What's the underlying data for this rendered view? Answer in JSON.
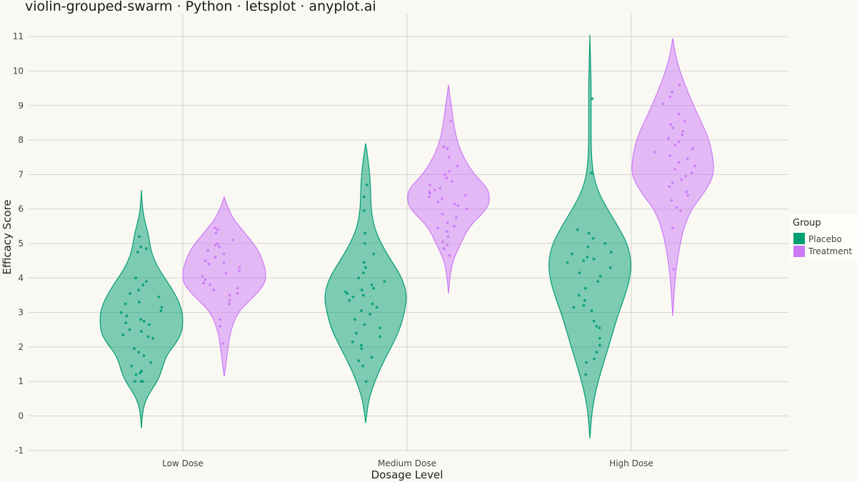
{
  "title": "violin-grouped-swarm · Python · letsplot · anyplot.ai",
  "colors": {
    "background": "#FAF8F2",
    "placebo": "#009E73",
    "treatment": "#CC79F7",
    "grid": "#D4D2CC"
  },
  "chart_data": {
    "type": "violin",
    "title": "violin-grouped-swarm · Python · letsplot · anyplot.ai",
    "xlabel": "Dosage Level",
    "ylabel": "Efficacy Score",
    "categories": [
      "Low Dose",
      "Medium Dose",
      "High Dose"
    ],
    "ylim": [
      -1.1,
      11.4
    ],
    "yticks": [
      "-1",
      "0",
      "1",
      "2",
      "3",
      "4",
      "5",
      "6",
      "7",
      "8",
      "9",
      "10",
      "11"
    ],
    "grid": true,
    "legend": {
      "title": "Group",
      "position": "right",
      "entries": [
        "Placebo",
        "Treatment"
      ]
    },
    "series": [
      {
        "name": "Placebo",
        "violins": [
          {
            "category": "Low Dose",
            "ymin": -0.35,
            "ymax": 6.55,
            "density": [
              [
                -0.35,
                0.0
              ],
              [
                0.0,
                0.02
              ],
              [
                0.3,
                0.06
              ],
              [
                0.6,
                0.16
              ],
              [
                0.9,
                0.33
              ],
              [
                1.2,
                0.46
              ],
              [
                1.5,
                0.53
              ],
              [
                1.8,
                0.63
              ],
              [
                2.1,
                0.83
              ],
              [
                2.4,
                0.97
              ],
              [
                2.7,
                1.0
              ],
              [
                3.0,
                0.99
              ],
              [
                3.3,
                0.91
              ],
              [
                3.6,
                0.78
              ],
              [
                3.9,
                0.62
              ],
              [
                4.2,
                0.45
              ],
              [
                4.5,
                0.32
              ],
              [
                4.8,
                0.23
              ],
              [
                5.1,
                0.19
              ],
              [
                5.4,
                0.14
              ],
              [
                5.7,
                0.07
              ],
              [
                6.0,
                0.03
              ],
              [
                6.3,
                0.01
              ],
              [
                6.55,
                0.0
              ]
            ],
            "points": [
              1.0,
              1.0,
              1.0,
              1.2,
              1.25,
              1.3,
              1.45,
              1.55,
              1.75,
              1.85,
              1.95,
              2.25,
              2.3,
              2.35,
              2.45,
              2.5,
              2.65,
              2.7,
              2.75,
              2.8,
              2.9,
              3.0,
              3.05,
              3.15,
              3.25,
              3.3,
              3.45,
              3.55,
              3.65,
              3.8,
              3.9,
              4.0,
              4.75,
              4.85,
              4.9,
              5.2
            ]
          },
          {
            "category": "Medium Dose",
            "ymin": -0.2,
            "ymax": 7.9,
            "density": [
              [
                -0.2,
                0.0
              ],
              [
                0.0,
                0.02
              ],
              [
                0.5,
                0.08
              ],
              [
                1.0,
                0.22
              ],
              [
                1.5,
                0.4
              ],
              [
                2.0,
                0.62
              ],
              [
                2.5,
                0.82
              ],
              [
                3.0,
                0.94
              ],
              [
                3.5,
                1.0
              ],
              [
                4.0,
                0.88
              ],
              [
                4.5,
                0.62
              ],
              [
                5.0,
                0.37
              ],
              [
                5.5,
                0.2
              ],
              [
                6.0,
                0.13
              ],
              [
                6.5,
                0.12
              ],
              [
                7.0,
                0.1
              ],
              [
                7.5,
                0.05
              ],
              [
                7.9,
                0.0
              ]
            ],
            "points": [
              1.0,
              1.45,
              1.6,
              1.7,
              1.95,
              2.05,
              2.15,
              2.3,
              2.4,
              2.55,
              2.65,
              2.8,
              2.95,
              3.05,
              3.15,
              3.25,
              3.35,
              3.45,
              3.5,
              3.55,
              3.6,
              3.65,
              3.7,
              3.8,
              3.9,
              4.0,
              4.15,
              4.3,
              4.45,
              4.7,
              5.0,
              5.3,
              5.95,
              6.35,
              6.7
            ]
          },
          {
            "category": "High Dose",
            "ymin": -0.65,
            "ymax": 11.05,
            "density": [
              [
                -0.65,
                0.0
              ],
              [
                0.0,
                0.04
              ],
              [
                0.5,
                0.1
              ],
              [
                1.0,
                0.2
              ],
              [
                1.5,
                0.32
              ],
              [
                2.0,
                0.45
              ],
              [
                2.5,
                0.57
              ],
              [
                3.0,
                0.7
              ],
              [
                3.5,
                0.85
              ],
              [
                4.0,
                0.97
              ],
              [
                4.5,
                1.0
              ],
              [
                5.0,
                0.9
              ],
              [
                5.5,
                0.68
              ],
              [
                6.0,
                0.42
              ],
              [
                6.5,
                0.2
              ],
              [
                7.0,
                0.08
              ],
              [
                7.5,
                0.04
              ],
              [
                8.0,
                0.03
              ],
              [
                8.5,
                0.03
              ],
              [
                9.0,
                0.03
              ],
              [
                9.5,
                0.03
              ],
              [
                10.0,
                0.02
              ],
              [
                10.5,
                0.01
              ],
              [
                11.05,
                0.0
              ]
            ],
            "points": [
              1.2,
              1.55,
              1.65,
              1.85,
              2.05,
              2.25,
              2.55,
              2.6,
              2.75,
              3.05,
              3.15,
              3.2,
              3.35,
              3.5,
              3.7,
              3.9,
              4.05,
              4.15,
              4.3,
              4.45,
              4.5,
              4.55,
              4.6,
              4.7,
              4.75,
              4.9,
              5.0,
              5.15,
              5.3,
              5.4,
              7.05,
              9.2
            ]
          }
        ]
      },
      {
        "name": "Treatment",
        "violins": [
          {
            "category": "Low Dose",
            "ymin": 1.15,
            "ymax": 6.35,
            "density": [
              [
                1.15,
                0.0
              ],
              [
                1.5,
                0.04
              ],
              [
                2.0,
                0.09
              ],
              [
                2.5,
                0.16
              ],
              [
                3.0,
                0.33
              ],
              [
                3.3,
                0.57
              ],
              [
                3.6,
                0.83
              ],
              [
                3.9,
                1.0
              ],
              [
                4.2,
                1.0
              ],
              [
                4.5,
                0.93
              ],
              [
                4.8,
                0.82
              ],
              [
                5.1,
                0.64
              ],
              [
                5.4,
                0.43
              ],
              [
                5.7,
                0.23
              ],
              [
                6.0,
                0.1
              ],
              [
                6.35,
                0.0
              ]
            ],
            "points": [
              2.1,
              2.6,
              2.8,
              3.25,
              3.35,
              3.5,
              3.55,
              3.65,
              3.7,
              3.8,
              3.85,
              3.95,
              4.05,
              4.15,
              4.2,
              4.3,
              4.4,
              4.45,
              4.5,
              4.6,
              4.7,
              4.8,
              4.9,
              4.95,
              5.0,
              5.1,
              5.3,
              5.4,
              5.45
            ]
          },
          {
            "category": "Medium Dose",
            "ymin": 3.55,
            "ymax": 9.6,
            "density": [
              [
                3.55,
                0.0
              ],
              [
                4.0,
                0.03
              ],
              [
                4.5,
                0.1
              ],
              [
                5.0,
                0.3
              ],
              [
                5.5,
                0.5
              ],
              [
                6.0,
                0.93
              ],
              [
                6.3,
                1.0
              ],
              [
                6.6,
                0.95
              ],
              [
                7.0,
                0.62
              ],
              [
                7.5,
                0.36
              ],
              [
                8.0,
                0.2
              ],
              [
                8.5,
                0.12
              ],
              [
                9.0,
                0.07
              ],
              [
                9.3,
                0.03
              ],
              [
                9.6,
                0.0
              ]
            ],
            "points": [
              4.65,
              4.85,
              4.95,
              5.05,
              5.2,
              5.35,
              5.45,
              5.5,
              5.6,
              5.75,
              5.85,
              6.0,
              6.1,
              6.15,
              6.2,
              6.3,
              6.35,
              6.4,
              6.45,
              6.5,
              6.55,
              6.6,
              6.7,
              6.8,
              6.9,
              7.0,
              7.1,
              7.25,
              7.5,
              7.75,
              7.8,
              8.55
            ]
          },
          {
            "category": "High Dose",
            "ymin": 2.9,
            "ymax": 10.95,
            "density": [
              [
                2.9,
                0.0
              ],
              [
                3.5,
                0.03
              ],
              [
                4.0,
                0.06
              ],
              [
                4.5,
                0.11
              ],
              [
                5.0,
                0.18
              ],
              [
                5.5,
                0.28
              ],
              [
                6.0,
                0.45
              ],
              [
                6.5,
                0.78
              ],
              [
                7.0,
                1.0
              ],
              [
                7.5,
                0.97
              ],
              [
                8.0,
                0.88
              ],
              [
                8.5,
                0.7
              ],
              [
                9.0,
                0.5
              ],
              [
                9.5,
                0.33
              ],
              [
                10.0,
                0.17
              ],
              [
                10.5,
                0.06
              ],
              [
                10.95,
                0.0
              ]
            ],
            "points": [
              4.25,
              5.45,
              5.95,
              6.05,
              6.25,
              6.4,
              6.5,
              6.65,
              6.75,
              6.85,
              6.95,
              7.05,
              7.15,
              7.25,
              7.35,
              7.45,
              7.55,
              7.65,
              7.75,
              7.85,
              7.95,
              8.05,
              8.15,
              8.25,
              8.35,
              8.45,
              8.55,
              8.75,
              9.05,
              9.25,
              9.4,
              9.6
            ]
          }
        ]
      }
    ]
  }
}
